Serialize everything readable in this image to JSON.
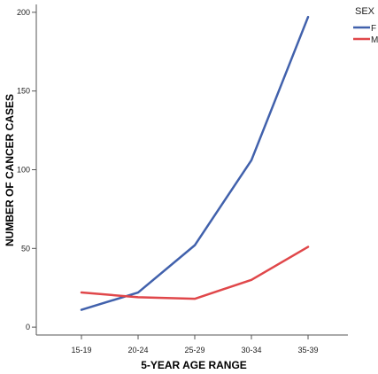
{
  "chart_data": {
    "type": "line",
    "categories": [
      "15-19",
      "20-24",
      "25-29",
      "30-34",
      "35-39"
    ],
    "xlabel": "5-YEAR AGE RANGE",
    "ylabel": "NUMBER OF CANCER CASES",
    "ylim": [
      -5,
      205
    ],
    "yticks": [
      0,
      50,
      100,
      150,
      200
    ],
    "grid": false,
    "legend": {
      "title": "SEX",
      "placement": "top-right"
    },
    "series": [
      {
        "name": "F",
        "color": "#4161ac",
        "values": [
          11,
          22,
          52,
          106,
          197
        ]
      },
      {
        "name": "M",
        "color": "#e0474a",
        "values": [
          22,
          19,
          18,
          30,
          51
        ]
      }
    ]
  }
}
